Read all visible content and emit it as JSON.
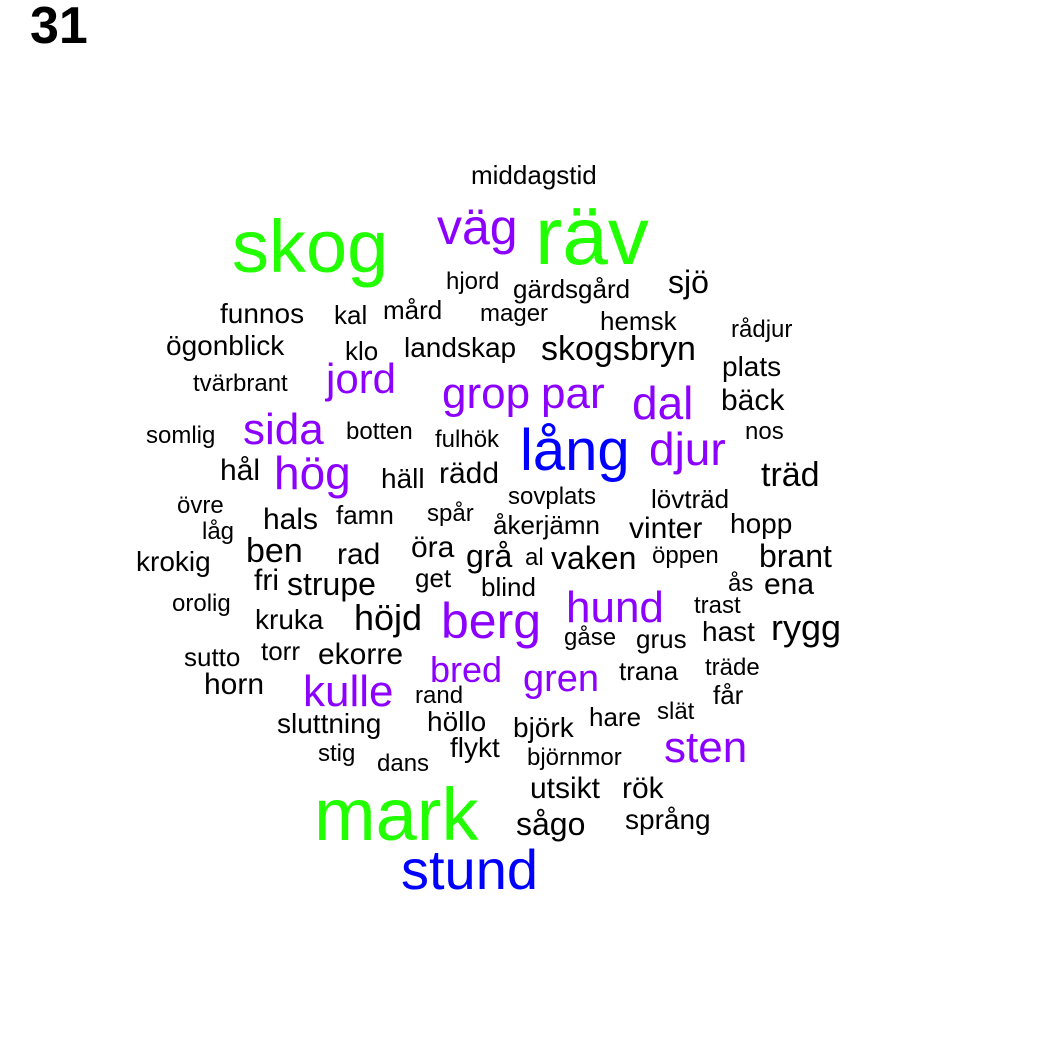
{
  "panel_label": "31",
  "colors": {
    "green": "#22ff00",
    "purple": "#8b00ff",
    "blue": "#0000ff",
    "black": "#000000"
  },
  "words": [
    {
      "text": "middagstid",
      "color": "black"
    },
    {
      "text": "räv",
      "color": "green"
    },
    {
      "text": "väg",
      "color": "purple"
    },
    {
      "text": "skog",
      "color": "green"
    },
    {
      "text": "hjord",
      "color": "black"
    },
    {
      "text": "gärdsgård",
      "color": "black"
    },
    {
      "text": "sjö",
      "color": "black"
    },
    {
      "text": "funnos",
      "color": "black"
    },
    {
      "text": "kal",
      "color": "black"
    },
    {
      "text": "mård",
      "color": "black"
    },
    {
      "text": "mager",
      "color": "black"
    },
    {
      "text": "hemsk",
      "color": "black"
    },
    {
      "text": "rådjur",
      "color": "black"
    },
    {
      "text": "ögonblick",
      "color": "black"
    },
    {
      "text": "klo",
      "color": "black"
    },
    {
      "text": "landskap",
      "color": "black"
    },
    {
      "text": "skogsbryn",
      "color": "black"
    },
    {
      "text": "plats",
      "color": "black"
    },
    {
      "text": "tvärbrant",
      "color": "black"
    },
    {
      "text": "jord",
      "color": "purple"
    },
    {
      "text": "grop",
      "color": "purple"
    },
    {
      "text": "par",
      "color": "purple"
    },
    {
      "text": "dal",
      "color": "purple"
    },
    {
      "text": "bäck",
      "color": "black"
    },
    {
      "text": "somlig",
      "color": "black"
    },
    {
      "text": "sida",
      "color": "purple"
    },
    {
      "text": "botten",
      "color": "black"
    },
    {
      "text": "fulhök",
      "color": "black"
    },
    {
      "text": "lång",
      "color": "blue"
    },
    {
      "text": "djur",
      "color": "purple"
    },
    {
      "text": "nos",
      "color": "black"
    },
    {
      "text": "hål",
      "color": "black"
    },
    {
      "text": "hög",
      "color": "purple"
    },
    {
      "text": "häll",
      "color": "black"
    },
    {
      "text": "rädd",
      "color": "black"
    },
    {
      "text": "träd",
      "color": "black"
    },
    {
      "text": "övre",
      "color": "black"
    },
    {
      "text": "sovplats",
      "color": "black"
    },
    {
      "text": "lövträd",
      "color": "black"
    },
    {
      "text": "låg",
      "color": "black"
    },
    {
      "text": "hals",
      "color": "black"
    },
    {
      "text": "famn",
      "color": "black"
    },
    {
      "text": "spår",
      "color": "black"
    },
    {
      "text": "åkerjämn",
      "color": "black"
    },
    {
      "text": "vinter",
      "color": "black"
    },
    {
      "text": "hopp",
      "color": "black"
    },
    {
      "text": "ben",
      "color": "black"
    },
    {
      "text": "krokig",
      "color": "black"
    },
    {
      "text": "rad",
      "color": "black"
    },
    {
      "text": "öra",
      "color": "black"
    },
    {
      "text": "grå",
      "color": "black"
    },
    {
      "text": "al",
      "color": "black"
    },
    {
      "text": "vaken",
      "color": "black"
    },
    {
      "text": "öppen",
      "color": "black"
    },
    {
      "text": "brant",
      "color": "black"
    },
    {
      "text": "fri",
      "color": "black"
    },
    {
      "text": "strupe",
      "color": "black"
    },
    {
      "text": "get",
      "color": "black"
    },
    {
      "text": "blind",
      "color": "black"
    },
    {
      "text": "ås",
      "color": "black"
    },
    {
      "text": "ena",
      "color": "black"
    },
    {
      "text": "orolig",
      "color": "black"
    },
    {
      "text": "hund",
      "color": "purple"
    },
    {
      "text": "trast",
      "color": "black"
    },
    {
      "text": "kruka",
      "color": "black"
    },
    {
      "text": "höjd",
      "color": "black"
    },
    {
      "text": "berg",
      "color": "purple"
    },
    {
      "text": "rygg",
      "color": "black"
    },
    {
      "text": "hast",
      "color": "black"
    },
    {
      "text": "gåse",
      "color": "black"
    },
    {
      "text": "grus",
      "color": "black"
    },
    {
      "text": "sutto",
      "color": "black"
    },
    {
      "text": "torr",
      "color": "black"
    },
    {
      "text": "ekorre",
      "color": "black"
    },
    {
      "text": "bred",
      "color": "purple"
    },
    {
      "text": "gren",
      "color": "purple"
    },
    {
      "text": "trana",
      "color": "black"
    },
    {
      "text": "träde",
      "color": "black"
    },
    {
      "text": "horn",
      "color": "black"
    },
    {
      "text": "kulle",
      "color": "purple"
    },
    {
      "text": "rand",
      "color": "black"
    },
    {
      "text": "får",
      "color": "black"
    },
    {
      "text": "hare",
      "color": "black"
    },
    {
      "text": "slät",
      "color": "black"
    },
    {
      "text": "sluttning",
      "color": "black"
    },
    {
      "text": "höllo",
      "color": "black"
    },
    {
      "text": "björk",
      "color": "black"
    },
    {
      "text": "sten",
      "color": "purple"
    },
    {
      "text": "stig",
      "color": "black"
    },
    {
      "text": "flykt",
      "color": "black"
    },
    {
      "text": "dans",
      "color": "black"
    },
    {
      "text": "björnmor",
      "color": "black"
    },
    {
      "text": "mark",
      "color": "green"
    },
    {
      "text": "utsikt",
      "color": "black"
    },
    {
      "text": "rök",
      "color": "black"
    },
    {
      "text": "sågo",
      "color": "black"
    },
    {
      "text": "språng",
      "color": "black"
    },
    {
      "text": "stund",
      "color": "blue"
    }
  ]
}
